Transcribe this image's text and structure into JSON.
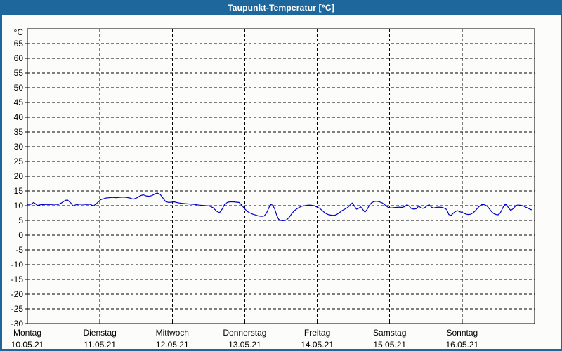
{
  "window": {
    "title": "Taupunkt-Temperatur [°C]"
  },
  "colors": {
    "frame": "#1e679c",
    "titlebar_bg": "#1e679c",
    "titlebar_text": "#ffffff",
    "chart_bg": "#fcfdfa",
    "plot_border": "#000000",
    "grid": "#000000",
    "axis_text": "#000000",
    "series_line": "#0000c8"
  },
  "chart_data": {
    "type": "line",
    "title": "Taupunkt-Temperatur [°C]",
    "unit_label": "°C",
    "ylim": [
      -30,
      70
    ],
    "ytick_step": 5,
    "yticks": [
      65,
      60,
      55,
      50,
      45,
      40,
      35,
      30,
      25,
      20,
      15,
      10,
      5,
      0,
      -5,
      -10,
      -15,
      -20,
      -25,
      -30
    ],
    "grid": "dashed",
    "legend": "none",
    "x_hours_total": 168,
    "x_days": [
      {
        "name": "Montag",
        "date": "10.05.21"
      },
      {
        "name": "Dienstag",
        "date": "11.05.21"
      },
      {
        "name": "Mittwoch",
        "date": "12.05.21"
      },
      {
        "name": "Donnerstag",
        "date": "13.05.21"
      },
      {
        "name": "Freitag",
        "date": "14.05.21"
      },
      {
        "name": "Samstag",
        "date": "15.05.21"
      },
      {
        "name": "Sonntag",
        "date": "16.05.21"
      }
    ],
    "series": [
      {
        "name": "Taupunkt",
        "color": "#0000c8",
        "points": [
          [
            0,
            10.4
          ],
          [
            1.2,
            10.5
          ],
          [
            2.1,
            11.1
          ],
          [
            3.3,
            10.1
          ],
          [
            4.4,
            10.3
          ],
          [
            5.6,
            10.4
          ],
          [
            6.7,
            10.4
          ],
          [
            7.9,
            10.4
          ],
          [
            9.1,
            10.5
          ],
          [
            10.2,
            10.4
          ],
          [
            11.4,
            11.0
          ],
          [
            12.6,
            11.8
          ],
          [
            13.3,
            11.9
          ],
          [
            14.4,
            10.9
          ],
          [
            15.1,
            9.9
          ],
          [
            16.1,
            10.3
          ],
          [
            17.2,
            10.5
          ],
          [
            18.4,
            10.5
          ],
          [
            19.5,
            10.4
          ],
          [
            20.7,
            10.5
          ],
          [
            21.9,
            9.9
          ],
          [
            23.0,
            10.8
          ],
          [
            23.6,
            11.4
          ],
          [
            24.2,
            12.0
          ],
          [
            25.1,
            12.3
          ],
          [
            26.0,
            12.6
          ],
          [
            27.0,
            12.7
          ],
          [
            28.2,
            12.8
          ],
          [
            29.3,
            12.7
          ],
          [
            30.5,
            12.8
          ],
          [
            31.7,
            12.9
          ],
          [
            32.8,
            12.8
          ],
          [
            34.0,
            12.6
          ],
          [
            35.1,
            12.2
          ],
          [
            36.3,
            12.7
          ],
          [
            37.5,
            13.4
          ],
          [
            38.4,
            13.7
          ],
          [
            39.3,
            13.3
          ],
          [
            40.3,
            13.2
          ],
          [
            41.2,
            13.4
          ],
          [
            42.1,
            13.9
          ],
          [
            43.0,
            14.3
          ],
          [
            44.0,
            13.8
          ],
          [
            44.9,
            12.6
          ],
          [
            45.8,
            11.4
          ],
          [
            46.8,
            11.1
          ],
          [
            47.7,
            11.2
          ],
          [
            48.6,
            11.3
          ],
          [
            49.8,
            11.0
          ],
          [
            51.0,
            10.8
          ],
          [
            52.2,
            10.7
          ],
          [
            53.3,
            10.6
          ],
          [
            54.5,
            10.5
          ],
          [
            55.6,
            10.4
          ],
          [
            56.8,
            10.2
          ],
          [
            58.0,
            10.1
          ],
          [
            59.1,
            10.0
          ],
          [
            60.3,
            9.9
          ],
          [
            61.5,
            9.3
          ],
          [
            62.6,
            8.2
          ],
          [
            63.6,
            7.6
          ],
          [
            64.5,
            8.8
          ],
          [
            65.4,
            10.6
          ],
          [
            66.4,
            11.2
          ],
          [
            67.3,
            11.3
          ],
          [
            68.2,
            11.3
          ],
          [
            69.2,
            11.2
          ],
          [
            70.1,
            11.1
          ],
          [
            71.0,
            10.2
          ],
          [
            72.0,
            8.9
          ],
          [
            72.9,
            8.0
          ],
          [
            73.8,
            7.5
          ],
          [
            74.7,
            7.1
          ],
          [
            75.7,
            6.8
          ],
          [
            76.6,
            6.5
          ],
          [
            77.5,
            6.4
          ],
          [
            78.4,
            6.5
          ],
          [
            79.2,
            7.5
          ],
          [
            80.0,
            9.3
          ],
          [
            80.5,
            10.4
          ],
          [
            81.2,
            10.2
          ],
          [
            81.9,
            8.9
          ],
          [
            82.6,
            6.7
          ],
          [
            83.2,
            5.4
          ],
          [
            83.9,
            5.0
          ],
          [
            84.6,
            4.9
          ],
          [
            85.4,
            5.0
          ],
          [
            86.0,
            5.3
          ],
          [
            86.8,
            6.2
          ],
          [
            87.5,
            7.2
          ],
          [
            88.3,
            8.2
          ],
          [
            89.1,
            8.8
          ],
          [
            90.0,
            9.4
          ],
          [
            90.9,
            9.8
          ],
          [
            91.9,
            10.0
          ],
          [
            92.9,
            10.2
          ],
          [
            93.9,
            10.2
          ],
          [
            94.9,
            10.0
          ],
          [
            95.8,
            9.6
          ],
          [
            96.8,
            9.1
          ],
          [
            97.7,
            8.3
          ],
          [
            98.6,
            7.5
          ],
          [
            99.6,
            7.0
          ],
          [
            100.5,
            6.8
          ],
          [
            101.4,
            6.7
          ],
          [
            102.3,
            6.9
          ],
          [
            103.2,
            7.5
          ],
          [
            104.2,
            8.3
          ],
          [
            105.1,
            8.8
          ],
          [
            106.0,
            9.3
          ],
          [
            107.0,
            10.3
          ],
          [
            107.6,
            10.9
          ],
          [
            108.3,
            9.9
          ],
          [
            109.0,
            8.8
          ],
          [
            109.7,
            9.1
          ],
          [
            110.4,
            9.6
          ],
          [
            111.1,
            8.7
          ],
          [
            111.8,
            7.8
          ],
          [
            112.5,
            8.7
          ],
          [
            113.2,
            10.0
          ],
          [
            113.9,
            10.9
          ],
          [
            114.8,
            11.4
          ],
          [
            115.7,
            11.5
          ],
          [
            116.6,
            11.3
          ],
          [
            117.6,
            10.9
          ],
          [
            118.5,
            10.2
          ],
          [
            119.4,
            9.5
          ],
          [
            120.4,
            9.2
          ],
          [
            121.3,
            9.3
          ],
          [
            122.2,
            9.4
          ],
          [
            123.2,
            9.5
          ],
          [
            124.1,
            9.4
          ],
          [
            125.0,
            9.7
          ],
          [
            125.7,
            10.3
          ],
          [
            126.4,
            9.9
          ],
          [
            127.1,
            9.1
          ],
          [
            128.0,
            8.8
          ],
          [
            128.9,
            9.0
          ],
          [
            129.6,
            9.9
          ],
          [
            130.3,
            9.3
          ],
          [
            131.0,
            9.1
          ],
          [
            131.7,
            9.4
          ],
          [
            132.4,
            10.0
          ],
          [
            133.1,
            10.3
          ],
          [
            133.8,
            9.5
          ],
          [
            134.5,
            9.2
          ],
          [
            135.4,
            9.4
          ],
          [
            136.3,
            9.5
          ],
          [
            137.3,
            9.4
          ],
          [
            138.2,
            9.1
          ],
          [
            138.9,
            8.7
          ],
          [
            139.6,
            7.0
          ],
          [
            140.3,
            6.7
          ],
          [
            141.0,
            7.4
          ],
          [
            141.7,
            8.0
          ],
          [
            142.4,
            8.3
          ],
          [
            143.1,
            8.0
          ],
          [
            144.0,
            7.7
          ],
          [
            144.7,
            7.4
          ],
          [
            145.4,
            7.1
          ],
          [
            146.1,
            7.0
          ],
          [
            146.8,
            7.1
          ],
          [
            147.5,
            7.5
          ],
          [
            148.2,
            8.1
          ],
          [
            148.9,
            8.9
          ],
          [
            149.6,
            9.7
          ],
          [
            150.3,
            10.3
          ],
          [
            151.0,
            10.4
          ],
          [
            151.7,
            10.2
          ],
          [
            152.4,
            9.7
          ],
          [
            153.1,
            8.8
          ],
          [
            153.8,
            7.9
          ],
          [
            154.5,
            7.3
          ],
          [
            155.2,
            7.0
          ],
          [
            155.9,
            6.9
          ],
          [
            156.6,
            7.5
          ],
          [
            157.3,
            8.9
          ],
          [
            158.0,
            10.3
          ],
          [
            158.7,
            10.4
          ],
          [
            159.4,
            9.2
          ],
          [
            160.1,
            8.4
          ],
          [
            160.8,
            8.9
          ],
          [
            161.5,
            9.7
          ],
          [
            162.2,
            10.2
          ],
          [
            162.9,
            10.2
          ],
          [
            163.6,
            10.1
          ],
          [
            164.3,
            9.9
          ],
          [
            165.0,
            9.5
          ],
          [
            165.7,
            9.2
          ],
          [
            166.4,
            8.8
          ],
          [
            167.1,
            8.6
          ]
        ]
      }
    ]
  }
}
